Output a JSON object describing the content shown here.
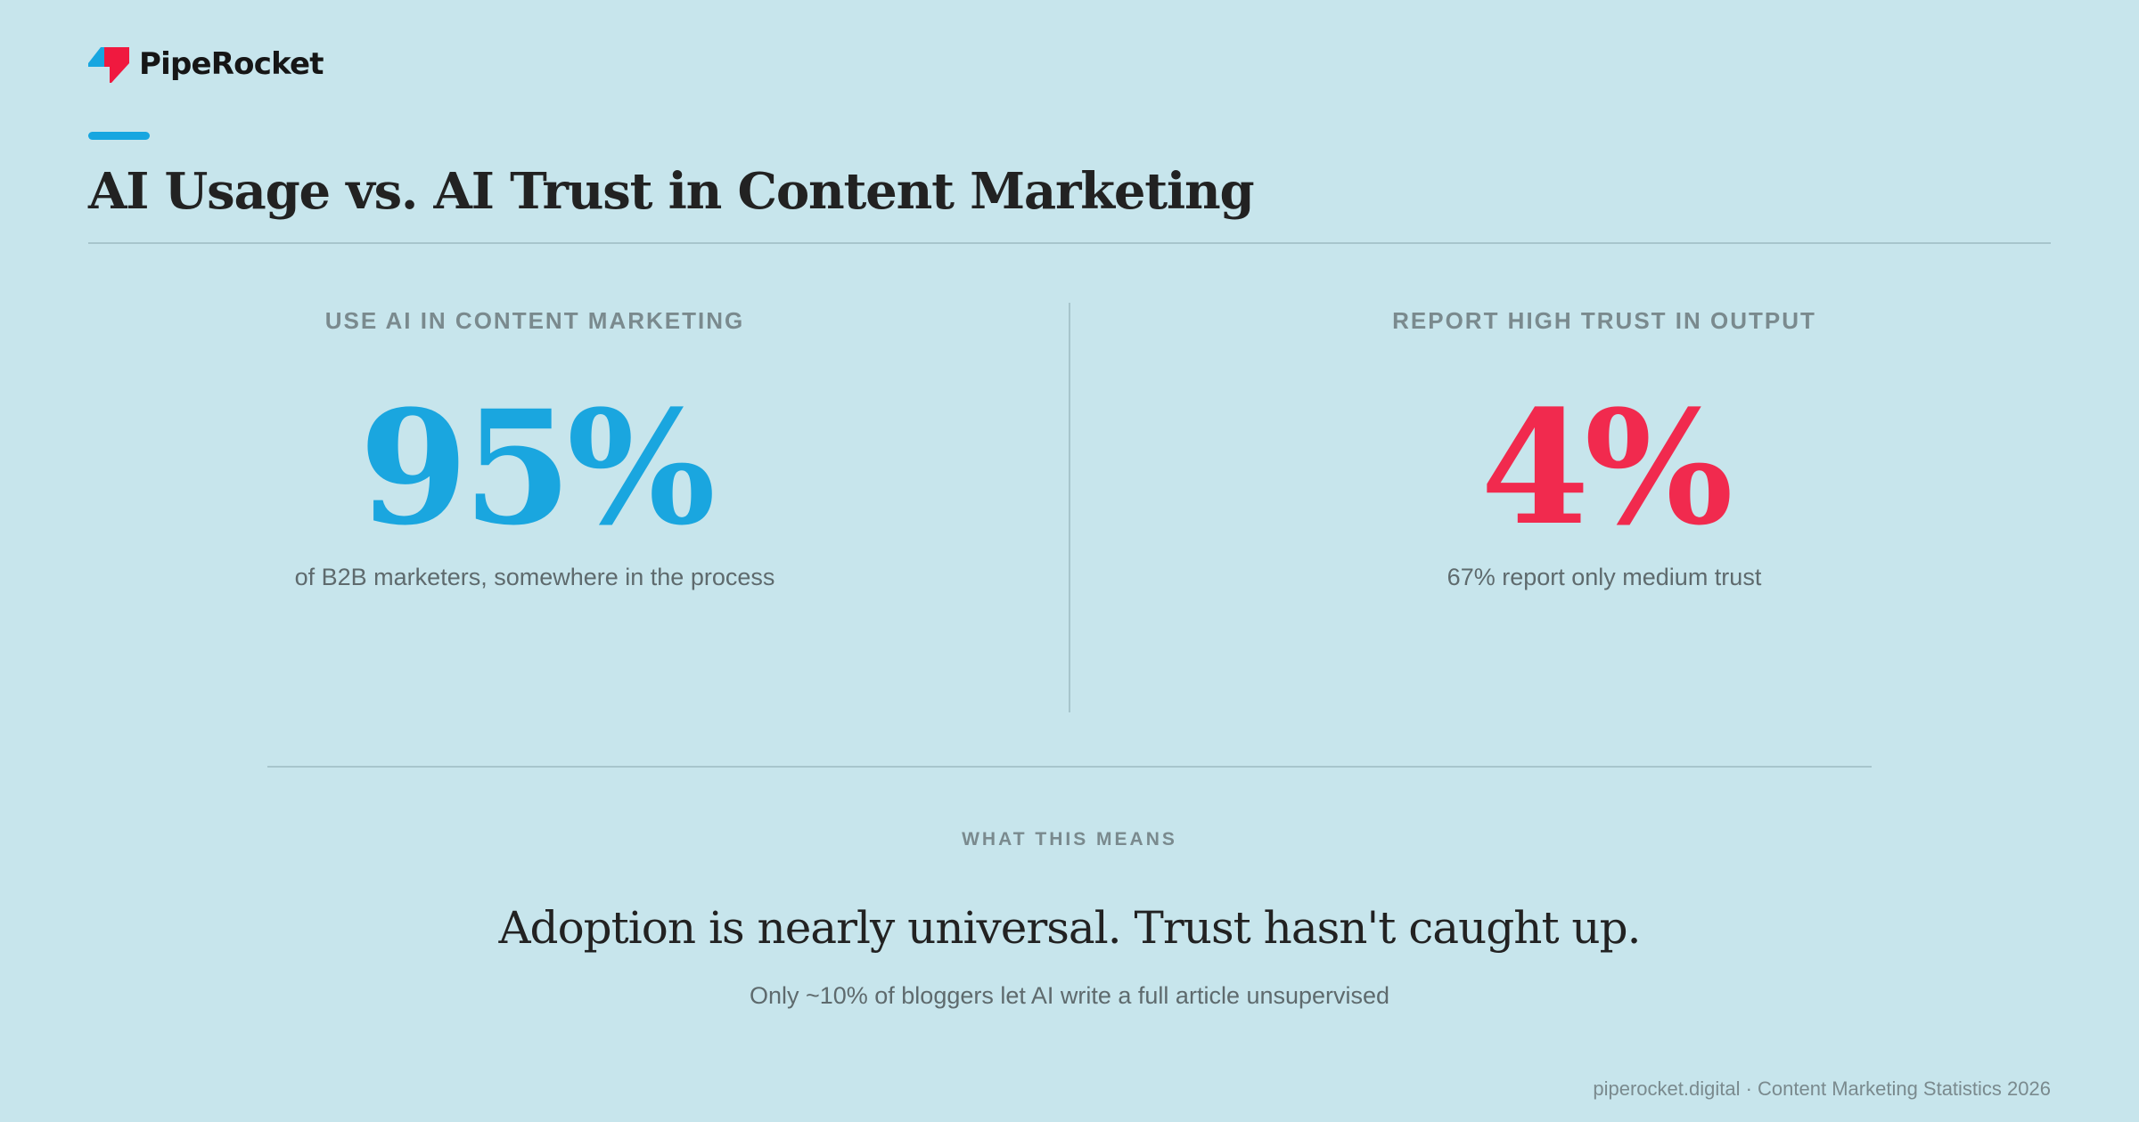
{
  "brand": {
    "name": "PipeRocket",
    "logo_icon": "piperocket-logo-icon",
    "colors": {
      "blue": "#17a6e0",
      "red": "#f0193f"
    }
  },
  "header": {
    "accent_color": "#17a6e0",
    "title": "AI Usage vs. AI Trust in Content Marketing"
  },
  "stats": [
    {
      "label": "USE AI IN CONTENT MARKETING",
      "value": "95%",
      "caption": "of B2B marketers, somewhere in the process",
      "color": "#1aa6df"
    },
    {
      "label": "REPORT HIGH TRUST IN OUTPUT",
      "value": "4%",
      "caption": "67% report only medium trust",
      "color": "#f12a4e"
    }
  ],
  "insight": {
    "eyebrow": "WHAT THIS MEANS",
    "headline": "Adoption is nearly universal. Trust hasn't caught up.",
    "note": "Only ~10% of bloggers let AI write a full article unsupervised"
  },
  "footer": {
    "source": "piperocket.digital · Content Marketing Statistics 2026"
  }
}
